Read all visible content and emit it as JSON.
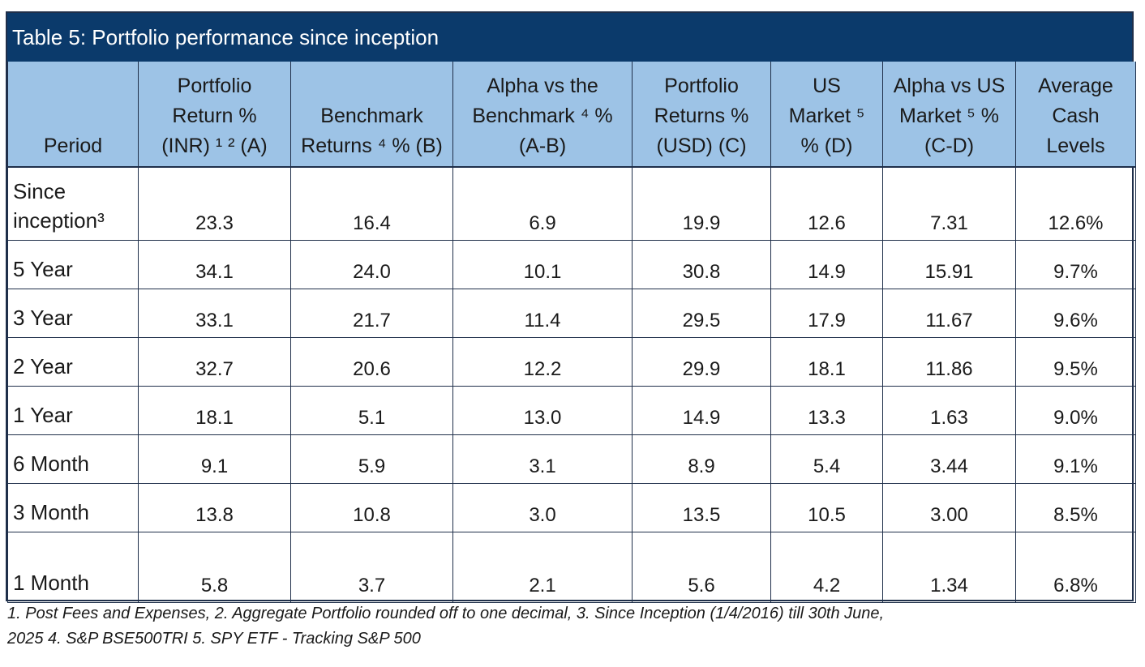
{
  "table": {
    "title": "Table 5: Portfolio performance since inception",
    "headers": [
      {
        "lines": [
          "Period"
        ]
      },
      {
        "lines": [
          "Portfolio",
          "Return %",
          "(INR) ¹ ² (A)"
        ]
      },
      {
        "lines": [
          "Benchmark",
          "Returns ⁴ % (B)"
        ]
      },
      {
        "lines": [
          "Alpha vs the",
          "Benchmark ⁴ %",
          "(A-B)"
        ]
      },
      {
        "lines": [
          "Portfolio",
          "Returns %",
          "(USD) (C)"
        ]
      },
      {
        "lines": [
          "US",
          "Market ⁵",
          "% (D)"
        ]
      },
      {
        "lines": [
          "Alpha vs US",
          "Market ⁵ %",
          "(C-D)"
        ]
      },
      {
        "lines": [
          "Average",
          "Cash",
          "Levels"
        ]
      }
    ],
    "rows": [
      {
        "period_lines": [
          "Since",
          "inception³"
        ],
        "values": [
          "23.3",
          "16.4",
          "6.9",
          "19.9",
          "12.6",
          "7.31",
          "12.6%"
        ]
      },
      {
        "period_lines": [
          "5 Year"
        ],
        "values": [
          "34.1",
          "24.0",
          "10.1",
          "30.8",
          "14.9",
          "15.91",
          "9.7%"
        ]
      },
      {
        "period_lines": [
          "3 Year"
        ],
        "values": [
          "33.1",
          "21.7",
          "11.4",
          "29.5",
          "17.9",
          "11.67",
          "9.6%"
        ]
      },
      {
        "period_lines": [
          "2 Year"
        ],
        "values": [
          "32.7",
          "20.6",
          "12.2",
          "29.9",
          "18.1",
          "11.86",
          "9.5%"
        ]
      },
      {
        "period_lines": [
          "1 Year"
        ],
        "values": [
          "18.1",
          "5.1",
          "13.0",
          "14.9",
          "13.3",
          "1.63",
          "9.0%"
        ]
      },
      {
        "period_lines": [
          "6 Month"
        ],
        "values": [
          "9.1",
          "5.9",
          "3.1",
          "8.9",
          "5.4",
          "3.44",
          "9.1%"
        ]
      },
      {
        "period_lines": [
          "3 Month"
        ],
        "values": [
          "13.8",
          "10.8",
          "3.0",
          "13.5",
          "10.5",
          "3.00",
          "8.5%"
        ]
      },
      {
        "period_lines": [
          "1 Month"
        ],
        "values": [
          "5.8",
          "3.7",
          "2.1",
          "5.6",
          "4.2",
          "1.34",
          "6.8%"
        ]
      }
    ]
  },
  "footnote": {
    "lines": [
      "1. Post Fees and Expenses, 2. Aggregate Portfolio rounded off to one decimal, 3. Since Inception (1/4/2016) till 30th June,",
      "2025  4. S&P BSE500TRI 5. SPY ETF - Tracking S&P 500"
    ]
  },
  "colors": {
    "title_bg": "#0b3a6b",
    "header_bg": "#9dc3e6",
    "border": "#1f2f4a"
  }
}
